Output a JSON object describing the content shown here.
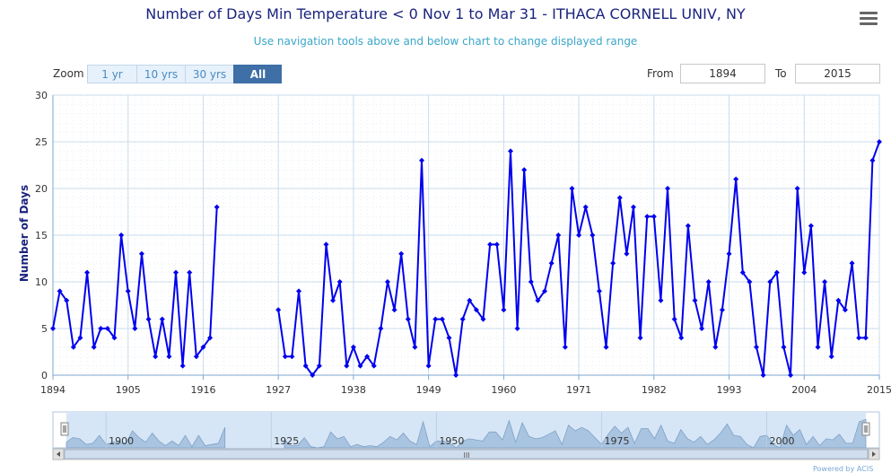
{
  "header": {
    "title": "Number of Days Min Temperature < 0 Nov 1 to Mar 31 - ITHACA CORNELL UNIV, NY",
    "subtitle": "Use navigation tools above and below chart to change displayed range",
    "menu_icon": "hamburger-menu-icon"
  },
  "range_selector": {
    "zoom_label": "Zoom",
    "buttons": [
      {
        "label": "1 yr",
        "active": false
      },
      {
        "label": "10 yrs",
        "active": false
      },
      {
        "label": "30 yrs",
        "active": false
      },
      {
        "label": "All",
        "active": true
      }
    ],
    "from_label": "From",
    "from_value": "1894",
    "to_label": "To",
    "to_value": "2015"
  },
  "navigator": {
    "labels": [
      "1900",
      "1925",
      "1950",
      "1975",
      "2000"
    ],
    "scroll_grip": "III"
  },
  "footer": {
    "credit": "Powered by ACIS"
  },
  "colors": {
    "series": "#0000ee",
    "title": "#1a237e",
    "subtitle": "#3aa6c9",
    "grid": "#c9dcee",
    "navigator_fill": "#9ab8d8"
  },
  "chart_data": {
    "type": "line",
    "title": "Number of Days Min Temperature < 0 Nov 1 to Mar 31 - ITHACA CORNELL UNIV, NY",
    "xlabel": "",
    "ylabel": "Number of Days",
    "xlim": [
      1894,
      2015
    ],
    "ylim": [
      0,
      30
    ],
    "x_ticks": [
      "1894",
      "1905",
      "1916",
      "1927",
      "1938",
      "1949",
      "1960",
      "1971",
      "1982",
      "1993",
      "2004",
      "2015"
    ],
    "y_ticks": [
      "0",
      "5",
      "10",
      "15",
      "20",
      "25",
      "30"
    ],
    "grid": true,
    "legend": false,
    "series": [
      {
        "x": [
          1894,
          1895,
          1896,
          1897,
          1898,
          1899,
          1900,
          1901,
          1902,
          1903,
          1904,
          1905,
          1906,
          1907,
          1908,
          1909,
          1910,
          1911,
          1912,
          1913,
          1914,
          1915,
          1916,
          1917,
          1918,
          1919,
          1920,
          1921,
          1922,
          1923,
          1924,
          1925,
          1926,
          1927,
          1928,
          1929,
          1930,
          1931,
          1932,
          1933,
          1934,
          1935,
          1936,
          1937,
          1938,
          1939,
          1940,
          1941,
          1942,
          1943,
          1944,
          1945,
          1946,
          1947,
          1948,
          1949,
          1950,
          1951,
          1952,
          1953,
          1954,
          1955,
          1956,
          1957,
          1958,
          1959,
          1960,
          1961,
          1962,
          1963,
          1964,
          1965,
          1966,
          1967,
          1968,
          1969,
          1970,
          1971,
          1972,
          1973,
          1974,
          1975,
          1976,
          1977,
          1978,
          1979,
          1980,
          1981,
          1982,
          1983,
          1984,
          1985,
          1986,
          1987,
          1988,
          1989,
          1990,
          1991,
          1992,
          1993,
          1994,
          1995,
          1996,
          1997,
          1998,
          1999,
          2000,
          2001,
          2002,
          2003,
          2004,
          2005,
          2006,
          2007,
          2008,
          2009,
          2010,
          2011,
          2012,
          2013,
          2014,
          2015
        ],
        "values": [
          5,
          9,
          8,
          3,
          4,
          11,
          3,
          5,
          5,
          4,
          15,
          9,
          5,
          13,
          6,
          2,
          6,
          2,
          11,
          1,
          11,
          2,
          3,
          4,
          18,
          null,
          null,
          null,
          null,
          null,
          null,
          null,
          null,
          7,
          2,
          2,
          9,
          1,
          0,
          1,
          14,
          8,
          10,
          1,
          3,
          1,
          2,
          1,
          5,
          10,
          7,
          13,
          6,
          3,
          23,
          1,
          6,
          6,
          4,
          0,
          6,
          8,
          7,
          6,
          14,
          14,
          7,
          24,
          5,
          22,
          10,
          8,
          9,
          12,
          15,
          3,
          20,
          15,
          18,
          15,
          9,
          3,
          12,
          19,
          13,
          18,
          4,
          17,
          17,
          8,
          20,
          6,
          4,
          16,
          8,
          5,
          10,
          3,
          7,
          13,
          21,
          11,
          10,
          3,
          0,
          10,
          11,
          3,
          0,
          20,
          11,
          16,
          3,
          10,
          2,
          8,
          7,
          12,
          4,
          4,
          23,
          25
        ]
      }
    ]
  }
}
